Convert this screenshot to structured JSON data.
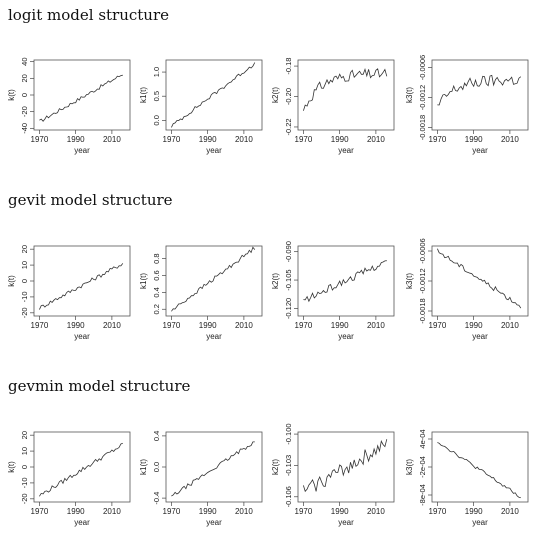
{
  "rows": [
    {
      "title": "logit model structure",
      "panels": [
        {
          "ylabel": "k(t)",
          "yticks": [
            "40",
            "20",
            "0",
            "-20",
            "-40"
          ],
          "yvals": [
            40,
            20,
            0,
            -20,
            -40
          ],
          "ylim": [
            -42,
            42
          ],
          "start": -32,
          "end": 25,
          "noise": 2.2,
          "decay": false
        },
        {
          "ylabel": "k1(t)",
          "yticks": [
            "1.0",
            "0.5",
            "0.0"
          ],
          "yvals": [
            1.0,
            0.5,
            0.0
          ],
          "ylim": [
            -0.2,
            1.25
          ],
          "start": -0.12,
          "end": 1.18,
          "noise": 0.04,
          "decay": false
        },
        {
          "ylabel": "k2(t)",
          "yticks": [
            "-0.18",
            "-0.20",
            "-0.22"
          ],
          "yvals": [
            -0.18,
            -0.2,
            -0.22
          ],
          "ylim": [
            -0.222,
            -0.176
          ],
          "start": -0.209,
          "end": -0.185,
          "noise": 0.0035,
          "decay": true
        },
        {
          "ylabel": "k3(t)",
          "yticks": [
            "-0.0006",
            "-0.0012",
            "-0.0018"
          ],
          "yvals": [
            -0.0006,
            -0.0012,
            -0.0018
          ],
          "ylim": [
            -0.00185,
            -0.00045
          ],
          "start": -0.0014,
          "end": -0.00085,
          "noise": 0.00012,
          "decay": true
        }
      ]
    },
    {
      "title": "gevit model structure",
      "panels": [
        {
          "ylabel": "k(t)",
          "yticks": [
            "20",
            "10",
            "0",
            "-10",
            "-20"
          ],
          "yvals": [
            20,
            10,
            0,
            -10,
            -20
          ],
          "ylim": [
            -22,
            22
          ],
          "start": -17,
          "end": 11,
          "noise": 1.3,
          "decay": false
        },
        {
          "ylabel": "k1(t)",
          "yticks": [
            "0.8",
            "0.6",
            "0.4",
            "0.2"
          ],
          "yvals": [
            0.8,
            0.6,
            0.4,
            0.2
          ],
          "ylim": [
            0.12,
            0.95
          ],
          "start": 0.18,
          "end": 0.93,
          "noise": 0.025,
          "decay": false
        },
        {
          "ylabel": "k2(t)",
          "yticks": [
            "-0.090",
            "-0.105",
            "-0.120"
          ],
          "yvals": [
            -0.09,
            -0.105,
            -0.12
          ],
          "ylim": [
            -0.124,
            -0.087
          ],
          "start": -0.116,
          "end": -0.095,
          "noise": 0.0018,
          "decay": false
        },
        {
          "ylabel": "k3(t)",
          "yticks": [
            "-0.0006",
            "-0.0012",
            "-0.0018"
          ],
          "yvals": [
            -0.0006,
            -0.0012,
            -0.0018
          ],
          "ylim": [
            -0.0019,
            -0.0005
          ],
          "start": -0.0006,
          "end": -0.0017,
          "noise": 5e-05,
          "decay": false
        }
      ]
    },
    {
      "title": "gevmin model structure",
      "panels": [
        {
          "ylabel": "k(t)",
          "yticks": [
            "20",
            "10",
            "0",
            "-10",
            "-20"
          ],
          "yvals": [
            20,
            10,
            0,
            -10,
            -20
          ],
          "ylim": [
            -22,
            22
          ],
          "start": -18,
          "end": 14,
          "noise": 1.4,
          "decay": false
        },
        {
          "ylabel": "k1(t)",
          "yticks": [
            "0.4",
            "0.0",
            "-0.4"
          ],
          "yvals": [
            0.4,
            0.0,
            -0.4
          ],
          "ylim": [
            -0.45,
            0.45
          ],
          "start": -0.38,
          "end": 0.33,
          "noise": 0.025,
          "decay": false
        },
        {
          "ylabel": "k2(t)",
          "yticks": [
            "-0.100",
            "-0.103",
            "-0.106"
          ],
          "yvals": [
            -0.1,
            -0.103,
            -0.106
          ],
          "ylim": [
            -0.1065,
            -0.0998
          ],
          "start": -0.1055,
          "end": -0.101,
          "noise": 0.0007,
          "decay": false
        },
        {
          "ylabel": "k3(t)",
          "yticks": [
            "4e-04",
            "-2e-04",
            "-8e-04"
          ],
          "yvals": [
            0.0004,
            -0.0002,
            -0.0008
          ],
          "ylim": [
            -0.00095,
            0.00055
          ],
          "start": 0.00035,
          "end": -0.00085,
          "noise": 4e-05,
          "decay": false
        }
      ]
    }
  ],
  "xaxis": {
    "label": "year",
    "ticks": [
      "1970",
      "1990",
      "2010"
    ],
    "tickvals": [
      1970,
      1990,
      2010
    ],
    "xlim": [
      1967,
      2020
    ],
    "start_year": 1970,
    "end_year": 2016
  },
  "chart_data": {
    "type": "line",
    "x_range": [
      1970,
      2016
    ],
    "xlabel": "year",
    "panels": [
      {
        "group": "logit model structure",
        "ylabel": "k(t)",
        "approx_start": -32,
        "approx_end": 25
      },
      {
        "group": "logit model structure",
        "ylabel": "k1(t)",
        "approx_start": -0.12,
        "approx_end": 1.18
      },
      {
        "group": "logit model structure",
        "ylabel": "k2(t)",
        "approx_start": -0.209,
        "approx_end": -0.185
      },
      {
        "group": "logit model structure",
        "ylabel": "k3(t)",
        "approx_start": -0.0014,
        "approx_end": -0.00085
      },
      {
        "group": "gevit model structure",
        "ylabel": "k(t)",
        "approx_start": -17,
        "approx_end": 11
      },
      {
        "group": "gevit model structure",
        "ylabel": "k1(t)",
        "approx_start": 0.18,
        "approx_end": 0.93
      },
      {
        "group": "gevit model structure",
        "ylabel": "k2(t)",
        "approx_start": -0.116,
        "approx_end": -0.095
      },
      {
        "group": "gevit model structure",
        "ylabel": "k3(t)",
        "approx_start": -0.0006,
        "approx_end": -0.0017
      },
      {
        "group": "gevmin model structure",
        "ylabel": "k(t)",
        "approx_start": -18,
        "approx_end": 14
      },
      {
        "group": "gevmin model structure",
        "ylabel": "k1(t)",
        "approx_start": -0.38,
        "approx_end": 0.33
      },
      {
        "group": "gevmin model structure",
        "ylabel": "k2(t)",
        "approx_start": -0.1055,
        "approx_end": -0.101
      },
      {
        "group": "gevmin model structure",
        "ylabel": "k3(t)",
        "approx_start": 0.00035,
        "approx_end": -0.00085
      }
    ]
  }
}
